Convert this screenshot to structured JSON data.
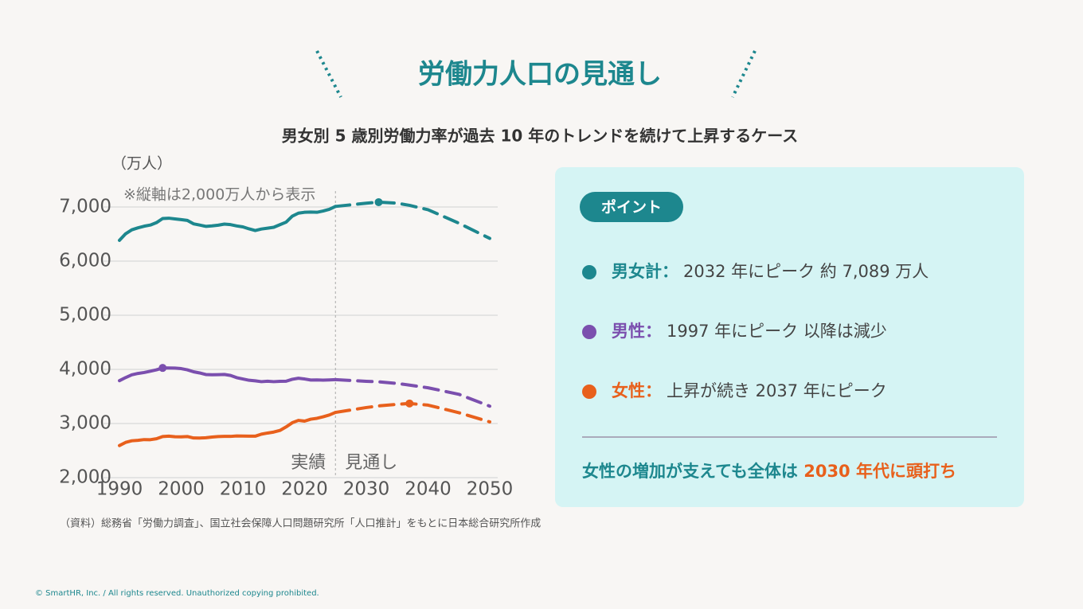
{
  "title": "労働力人口の見通し",
  "subtitle": "男女別 5 歳別労働力率が過去 10 年のトレンドを続けて上昇するケース",
  "chart_data": {
    "type": "line",
    "y_unit": "（万人）",
    "note": "※縦軸は2,000万人から表示",
    "actual_label": "実績",
    "projection_label": "見通し",
    "divider_x": 2025,
    "x": [
      1990,
      1991,
      1992,
      1993,
      1994,
      1995,
      1996,
      1997,
      1998,
      1999,
      2000,
      2001,
      2002,
      2003,
      2004,
      2005,
      2006,
      2007,
      2008,
      2009,
      2010,
      2011,
      2012,
      2013,
      2014,
      2015,
      2016,
      2017,
      2018,
      2019,
      2020,
      2021,
      2022,
      2023,
      2024,
      2025,
      2030,
      2032,
      2035,
      2037,
      2040,
      2045,
      2050
    ],
    "series": [
      {
        "name": "男女計：",
        "color": "#1d878e",
        "values": [
          6384,
          6505,
          6578,
          6615,
          6645,
          6666,
          6711,
          6787,
          6793,
          6779,
          6766,
          6752,
          6689,
          6666,
          6642,
          6651,
          6664,
          6684,
          6674,
          6650,
          6632,
          6596,
          6565,
          6593,
          6609,
          6625,
          6673,
          6720,
          6830,
          6886,
          6902,
          6907,
          6902,
          6925,
          6957,
          7010,
          7070,
          7089,
          7070,
          7030,
          6950,
          6700,
          6420
        ]
      },
      {
        "name": "男性：",
        "color": "#7b4fae",
        "values": [
          3791,
          3849,
          3900,
          3925,
          3942,
          3966,
          3992,
          4027,
          4026,
          4024,
          4014,
          3992,
          3956,
          3934,
          3905,
          3901,
          3903,
          3906,
          3888,
          3847,
          3822,
          3799,
          3789,
          3773,
          3781,
          3773,
          3779,
          3781,
          3817,
          3836,
          3823,
          3803,
          3805,
          3802,
          3805,
          3810,
          3780,
          3770,
          3740,
          3710,
          3660,
          3540,
          3320
        ]
      },
      {
        "name": "女性：",
        "color": "#e8601c",
        "values": [
          2593,
          2651,
          2681,
          2690,
          2703,
          2701,
          2719,
          2760,
          2767,
          2755,
          2753,
          2760,
          2733,
          2732,
          2737,
          2750,
          2759,
          2763,
          2762,
          2771,
          2768,
          2766,
          2766,
          2803,
          2824,
          2842,
          2872,
          2937,
          3014,
          3058,
          3044,
          3080,
          3096,
          3124,
          3157,
          3205,
          3295,
          3325,
          3355,
          3370,
          3340,
          3200,
          3030
        ]
      }
    ],
    "xlim": [
      1990,
      2050
    ],
    "xticks": [
      1990,
      2000,
      2010,
      2020,
      2030,
      2040,
      2050
    ],
    "ylim": [
      2000,
      7000
    ],
    "yticks": [
      {
        "value": 2000,
        "label": "2,000"
      },
      {
        "value": 3000,
        "label": "3,000"
      },
      {
        "value": 4000,
        "label": "4,000"
      },
      {
        "value": 5000,
        "label": "5,000"
      },
      {
        "value": 6000,
        "label": "6,000"
      },
      {
        "value": 7000,
        "label": "7,000"
      }
    ],
    "grid": true
  },
  "panel": {
    "badge": "ポイント",
    "points": [
      "2032 年にピーク 約 7,089 万人",
      "1997 年にピーク 以降は減少",
      "上昇が続き 2037 年にピーク"
    ],
    "summary": "女性の増加が支えても全体は",
    "summary_highlight": "2030 年代に頭打ち"
  },
  "source": "（資料）総務省「労働力調査」、国立社会保障人口問題研究所「人口推計」をもとに日本総合研究所作成",
  "copyright": "© SmartHR, Inc. / All rights reserved. Unauthorized copying prohibited."
}
